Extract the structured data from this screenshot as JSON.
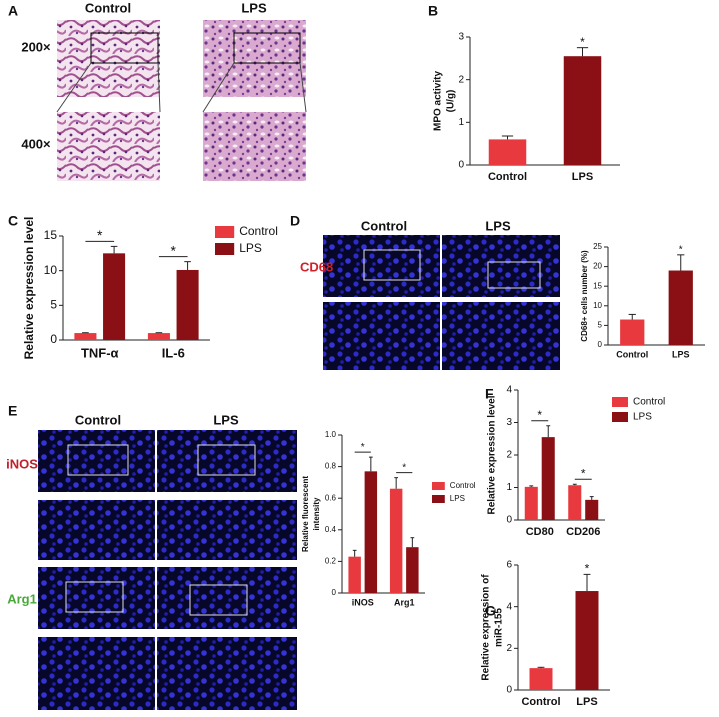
{
  "figure": {
    "panel_letters": [
      "A",
      "B",
      "C",
      "D",
      "E",
      "F",
      "G"
    ],
    "A": {
      "columns": [
        "Control",
        "LPS"
      ],
      "rows": [
        "200×",
        "400×"
      ]
    },
    "D": {
      "columns": [
        "Control",
        "LPS"
      ],
      "stain": "CD68"
    },
    "E": {
      "columns": [
        "Control",
        "LPS"
      ],
      "stains": [
        "iNOS",
        "Arg1"
      ]
    }
  },
  "chart_data": [
    {
      "type": "bar",
      "ylabel": [
        "MPO activity",
        "(U/g)"
      ],
      "categories": [
        "Control",
        "LPS"
      ],
      "values": [
        0.6,
        2.55
      ],
      "errors": [
        0.08,
        0.2
      ],
      "colors": [
        "#e8393f",
        "#8b1015"
      ],
      "ylim": [
        0,
        3
      ],
      "yticks": [
        0,
        1,
        2,
        3
      ],
      "annotations": [
        null,
        "*"
      ]
    },
    {
      "type": "grouped_bar",
      "ylabel": [
        "Relative expression level"
      ],
      "categories": [
        "TNF-α",
        "IL-6"
      ],
      "series": [
        {
          "name": "Control",
          "color": "#e8393f",
          "values": [
            1,
            1
          ],
          "errors": [
            0.05,
            0.05
          ]
        },
        {
          "name": "LPS",
          "color": "#8b1015",
          "values": [
            12.5,
            10.1
          ],
          "errors": [
            1,
            1.2
          ]
        }
      ],
      "ylim": [
        0,
        15
      ],
      "yticks": [
        0,
        5,
        10,
        15
      ],
      "annotations": [
        "*",
        "*"
      ],
      "legend": true
    },
    {
      "type": "bar",
      "ylabel": [
        "CD68+ cells number (%)"
      ],
      "categories": [
        "Control",
        "LPS"
      ],
      "values": [
        6.5,
        19
      ],
      "errors": [
        1.3,
        4
      ],
      "colors": [
        "#e8393f",
        "#8b1015"
      ],
      "ylim": [
        0,
        25
      ],
      "yticks": [
        0,
        5,
        10,
        15,
        20,
        25
      ],
      "annotations": [
        null,
        "*"
      ]
    },
    {
      "type": "grouped_bar",
      "ylabel": [
        "Relative fluorescent",
        "intensity"
      ],
      "categories": [
        "iNOS",
        "Arg1"
      ],
      "series": [
        {
          "name": "Control",
          "color": "#e8393f",
          "values": [
            0.23,
            0.66
          ],
          "errors": [
            0.04,
            0.07
          ]
        },
        {
          "name": "LPS",
          "color": "#8b1015",
          "values": [
            0.77,
            0.29
          ],
          "errors": [
            0.09,
            0.06
          ]
        }
      ],
      "ylim": [
        0,
        1
      ],
      "yticks": [
        0,
        0.2,
        0.4,
        0.6,
        0.8,
        {
          "value": 1,
          "label": "1.0"
        }
      ],
      "annotations": [
        "*",
        "*"
      ],
      "legend": true
    },
    {
      "type": "grouped_bar",
      "ylabel": [
        "Relative expression level"
      ],
      "categories": [
        "CD80",
        "CD206"
      ],
      "series": [
        {
          "name": "Control",
          "color": "#e8393f",
          "values": [
            1.02,
            1.07
          ],
          "errors": [
            0.03,
            0.03
          ],
          "_": 0
        },
        {
          "name": "LPS",
          "color": "#8b1015",
          "values": [
            2.55,
            0.62
          ],
          "errors": [
            0.35,
            0.1
          ]
        }
      ],
      "ylim": [
        0,
        4
      ],
      "yticks": [
        0,
        1,
        2,
        3,
        4
      ],
      "annotations": [
        "*",
        "*"
      ],
      "legend": true
    },
    {
      "type": "bar",
      "ylabel": [
        "Relative expression of",
        "miR-155"
      ],
      "categories": [
        "Control",
        "LPS"
      ],
      "values": [
        1.05,
        4.75
      ],
      "errors": [
        0.04,
        0.8
      ],
      "colors": [
        "#e8393f",
        "#8b1015"
      ],
      "ylim": [
        0,
        6
      ],
      "yticks": [
        0,
        2,
        4,
        6
      ],
      "annotations": [
        null,
        "*"
      ]
    }
  ]
}
